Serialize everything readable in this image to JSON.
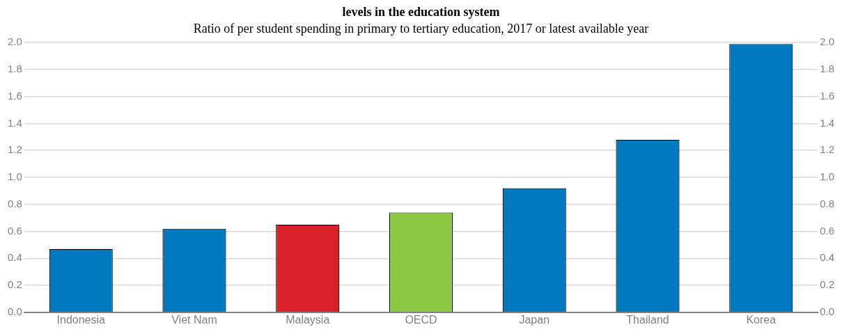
{
  "chart_data": {
    "type": "bar",
    "title": "levels in the education system",
    "subtitle": "Ratio of per student spending in primary to tertiary education, 2017 or latest available year",
    "categories": [
      "Indonesia",
      "Viet Nam",
      "Malaysia",
      "OECD",
      "Japan",
      "Thailand",
      "Korea"
    ],
    "values": [
      0.47,
      0.62,
      0.65,
      0.74,
      0.92,
      1.28,
      1.99
    ],
    "colors": [
      "#0079c1",
      "#0079c1",
      "#da2128",
      "#8cc841",
      "#0079c1",
      "#0079c1",
      "#0079c1"
    ],
    "ylim": [
      0,
      2
    ],
    "yticks": [
      {
        "value": 0,
        "label": "0.0"
      },
      {
        "value": 0.2,
        "label": "0.2"
      },
      {
        "value": 0.4,
        "label": "0.4"
      },
      {
        "value": 0.6,
        "label": "0.6"
      },
      {
        "value": 0.8,
        "label": "0.8"
      },
      {
        "value": 1,
        "label": "1.0"
      },
      {
        "value": 1.2,
        "label": "1.2"
      },
      {
        "value": 1.4,
        "label": "1.4"
      },
      {
        "value": 1.6,
        "label": "1.6"
      },
      {
        "value": 1.8,
        "label": "1.8"
      },
      {
        "value": 2,
        "label": "2.0"
      }
    ],
    "y2lim": [
      0,
      2
    ],
    "y2ticks": [
      {
        "value": 0,
        "label": "0.0"
      },
      {
        "value": 0.2,
        "label": "0.2"
      },
      {
        "value": 0.4,
        "label": "0.4"
      },
      {
        "value": 0.6,
        "label": "0.6"
      },
      {
        "value": 0.8,
        "label": "0.8"
      },
      {
        "value": 1,
        "label": "1.0"
      },
      {
        "value": 1.2,
        "label": "1.2"
      },
      {
        "value": 1.4,
        "label": "1.4"
      },
      {
        "value": 1.6,
        "label": "1.6"
      },
      {
        "value": 1.8,
        "label": "1.8"
      },
      {
        "value": 2,
        "label": "2.0"
      }
    ],
    "grid": "y",
    "legend": false
  }
}
